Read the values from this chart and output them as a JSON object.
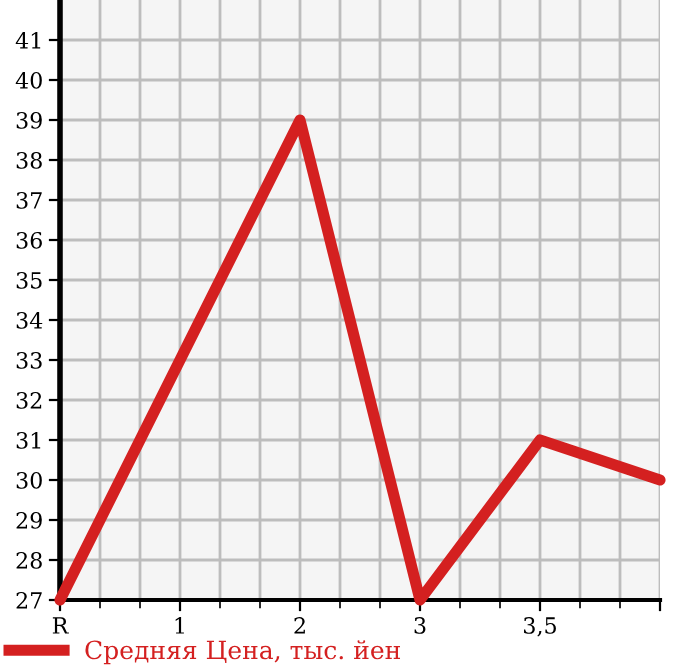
{
  "chart_data": {
    "type": "line",
    "categories": [
      "R",
      "1",
      "2",
      "3",
      "3,5",
      null
    ],
    "series": [
      {
        "name": "Средняя Цена, тыс. йен",
        "color": "#d42020",
        "values": [
          27,
          33,
          39,
          27,
          31,
          30
        ]
      }
    ],
    "ylim": [
      27,
      42
    ],
    "yticks": [
      27,
      28,
      29,
      30,
      31,
      32,
      33,
      34,
      35,
      36,
      37,
      38,
      39,
      40,
      41
    ],
    "grid": true,
    "legend": "bottom",
    "marker": "none",
    "line_style": "solid"
  }
}
